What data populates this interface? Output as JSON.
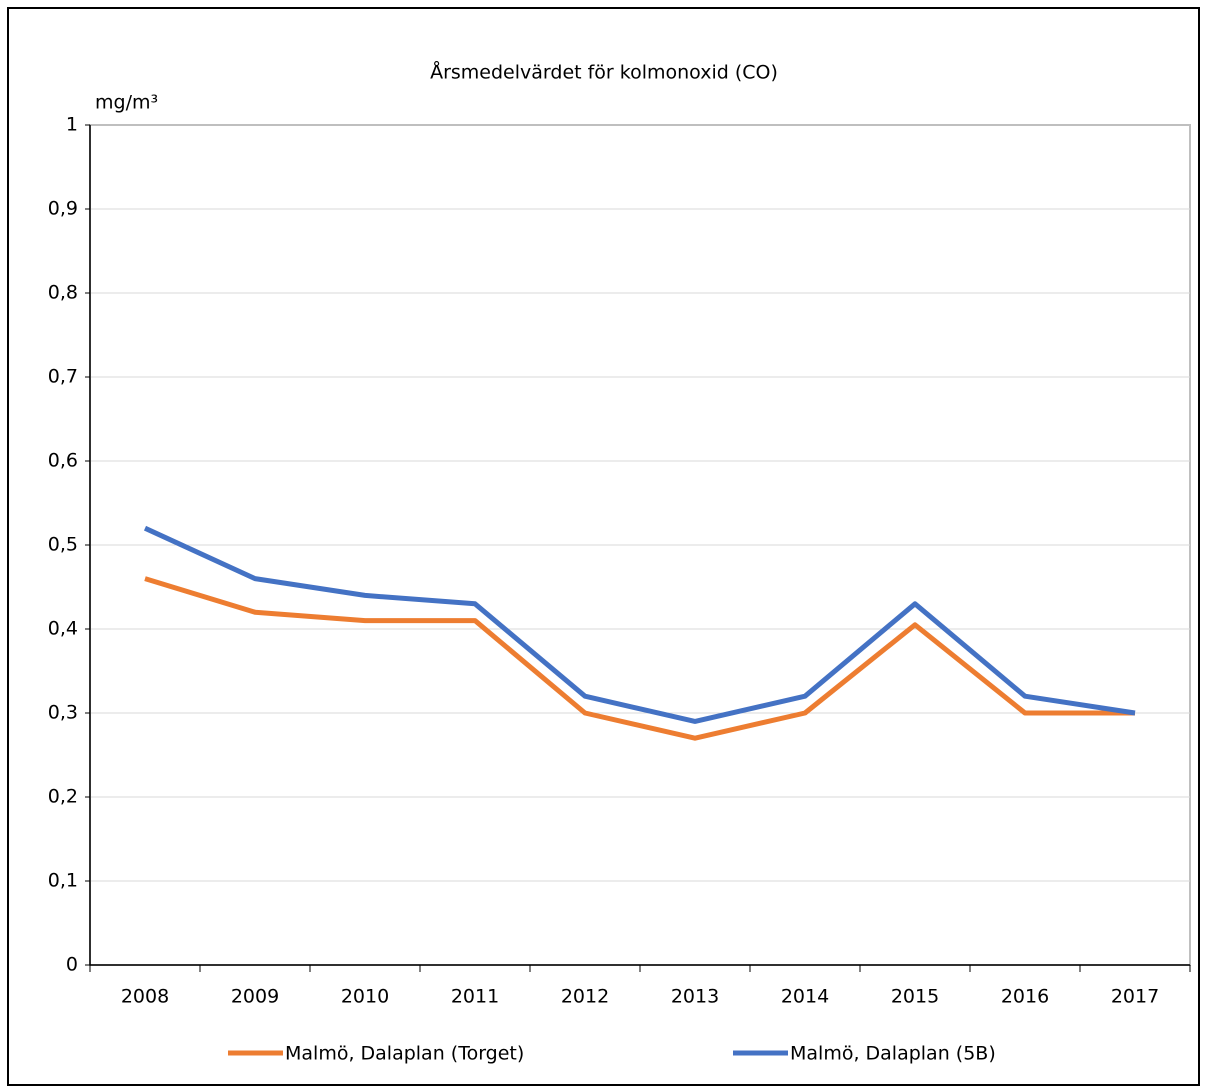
{
  "chart_data": {
    "type": "line",
    "title": "Årsmedelvärdet för kolmonoxid (CO)",
    "y_label": "mg/m³",
    "categories": [
      "2008",
      "2009",
      "2010",
      "2011",
      "2012",
      "2013",
      "2014",
      "2015",
      "2016",
      "2017"
    ],
    "series": [
      {
        "name": "Malmö, Dalaplan (Torget)",
        "color": "#ed7d31",
        "values": [
          0.46,
          0.42,
          0.41,
          0.41,
          0.3,
          0.27,
          0.3,
          0.405,
          0.3,
          0.3
        ]
      },
      {
        "name": "Malmö, Dalaplan (5B)",
        "color": "#4472c4",
        "values": [
          0.52,
          0.46,
          0.44,
          0.43,
          0.32,
          0.29,
          0.32,
          0.43,
          0.32,
          0.3
        ]
      }
    ],
    "ylim": [
      0,
      1
    ],
    "yticks": [
      0,
      {
        "value": 0.1,
        "label": "0,1"
      },
      {
        "value": 0.2,
        "label": "0,2"
      },
      {
        "value": 0.3,
        "label": "0,3"
      },
      {
        "value": 0.4,
        "label": "0,4"
      },
      {
        "value": 0.5,
        "label": "0,5"
      },
      {
        "value": 0.6,
        "label": "0,6"
      },
      {
        "value": 0.7,
        "label": "0,7"
      },
      {
        "value": 0.8,
        "label": "0,8"
      },
      {
        "value": 0.9,
        "label": "0,9"
      },
      1
    ],
    "grid": true,
    "legend": "bottom"
  }
}
